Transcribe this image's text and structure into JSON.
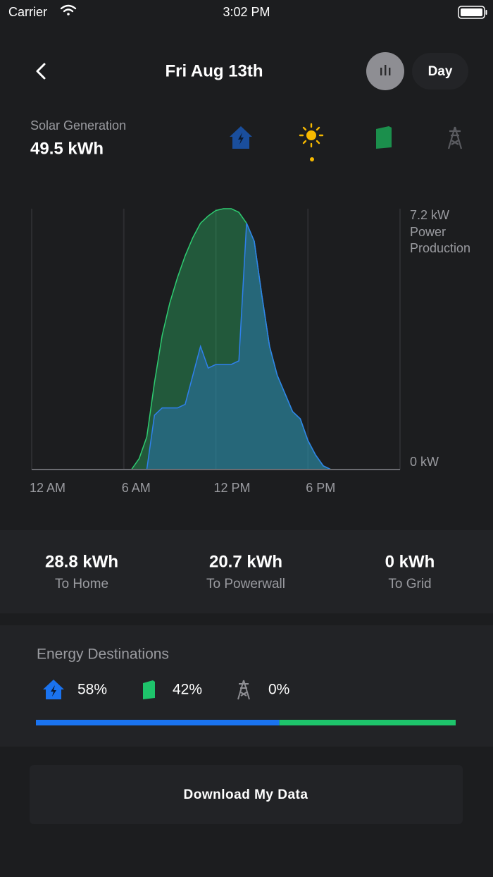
{
  "status_bar": {
    "carrier": "Carrier",
    "time": "3:02 PM"
  },
  "header": {
    "title": "Fri Aug 13th",
    "range": "Day"
  },
  "summary": {
    "label": "Solar Generation",
    "value": "49.5 kWh"
  },
  "chart_data": {
    "type": "area",
    "y_label": "Power Production",
    "x": [
      6.5,
      7,
      7.5,
      8,
      8.5,
      9,
      9.5,
      10,
      10.5,
      11,
      11.5,
      12,
      12.5,
      13,
      13.5,
      14,
      14.5,
      15,
      15.5,
      16,
      16.5,
      17,
      17.5,
      18,
      18.5,
      19,
      19.5
    ],
    "series": [
      {
        "color": "#2ecc71",
        "values": [
          0,
          0.3,
          0.9,
          2.4,
          3.7,
          4.6,
          5.3,
          5.9,
          6.4,
          6.8,
          7.0,
          7.15,
          7.2,
          7.2,
          7.1,
          6.8,
          6.3,
          4.8,
          3.4,
          2.6,
          2.1,
          1.6,
          1.4,
          0.8,
          0.4,
          0.1,
          0
        ]
      },
      {
        "color": "#2f80ed",
        "values": [
          0,
          0,
          0,
          1.5,
          1.7,
          1.7,
          1.7,
          1.8,
          2.6,
          3.4,
          2.8,
          2.9,
          2.9,
          2.9,
          3.0,
          6.8,
          6.3,
          4.8,
          3.4,
          2.6,
          2.1,
          1.6,
          1.4,
          0.8,
          0.4,
          0.1,
          0
        ]
      }
    ],
    "xlim": [
      0,
      24
    ],
    "xticks": [
      {
        "value": 0,
        "label": "12 AM"
      },
      {
        "value": 6,
        "label": "6 AM"
      },
      {
        "value": 12,
        "label": "12 PM"
      },
      {
        "value": 18,
        "label": "6 PM"
      }
    ],
    "ylim": [
      0,
      7.2
    ],
    "yticks": [
      {
        "value": 0,
        "label": "0 kW"
      },
      {
        "value": 7.2,
        "label": "7.2 kW"
      }
    ],
    "grid": true
  },
  "stats": [
    {
      "value": "28.8 kWh",
      "label": "To Home"
    },
    {
      "value": "20.7 kWh",
      "label": "To Powerwall"
    },
    {
      "value": "0 kWh",
      "label": "To Grid"
    }
  ],
  "destinations": {
    "title": "Energy Destinations",
    "values": [
      58,
      42,
      0
    ],
    "value_labels": [
      "58%",
      "42%",
      "0%"
    ],
    "colors": [
      "#1a73f0",
      "#1ec46b",
      "#8e8e93"
    ]
  },
  "button": {
    "label": "Download My Data"
  }
}
